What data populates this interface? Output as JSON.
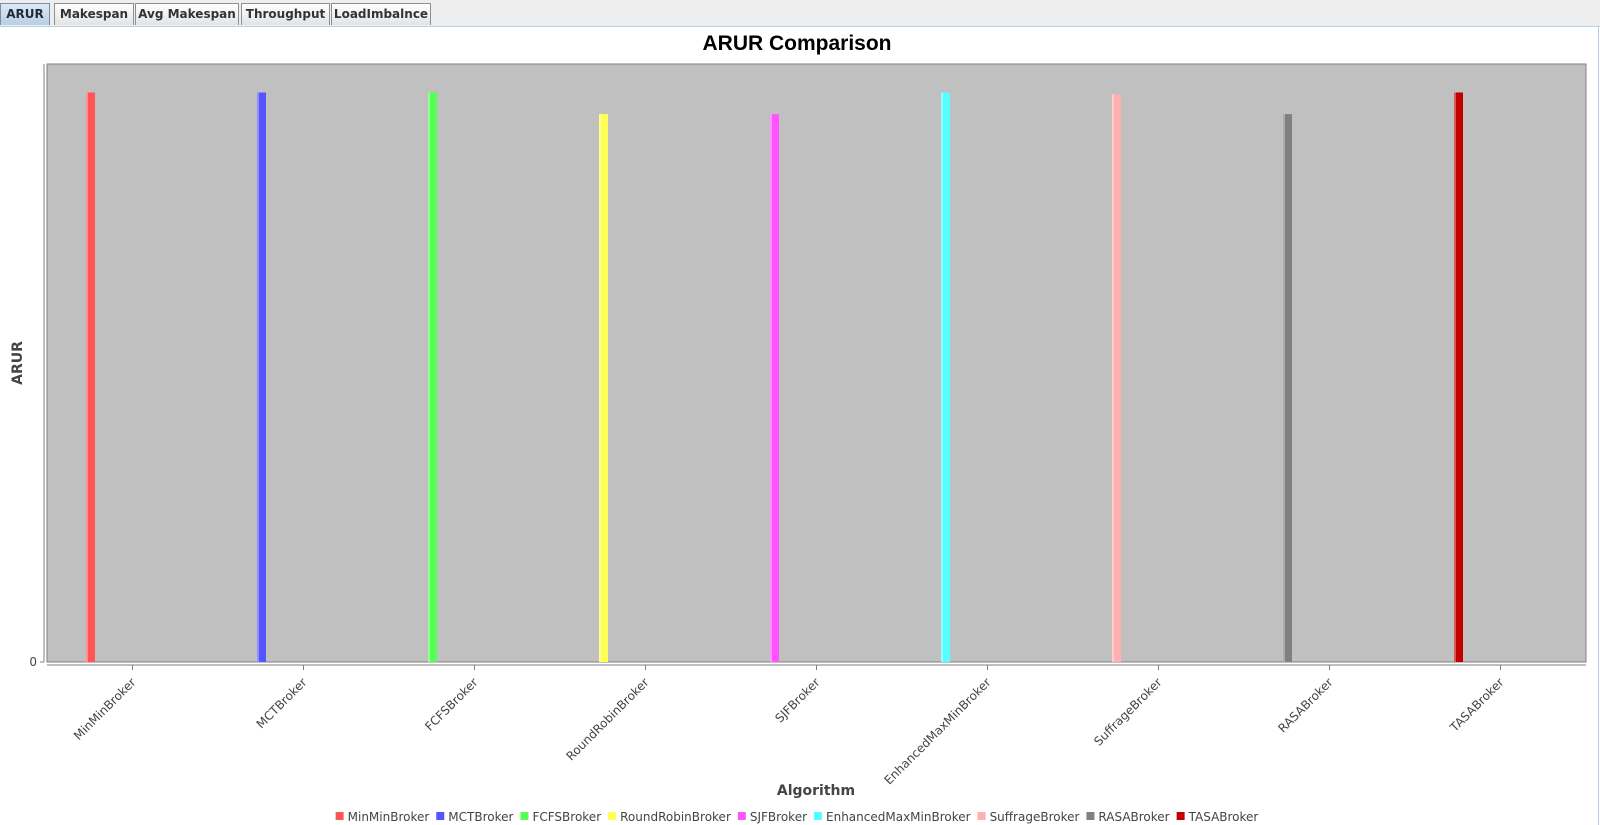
{
  "tabs": [
    {
      "label": "ARUR",
      "selected": true
    },
    {
      "label": "Makespan",
      "selected": false
    },
    {
      "label": "Avg Makespan",
      "selected": false
    },
    {
      "label": "Throughput",
      "selected": false
    },
    {
      "label": "LoadImbalnce",
      "selected": false
    }
  ],
  "chart_data": {
    "type": "bar",
    "title": "ARUR Comparison",
    "xlabel": "Algorithm",
    "ylabel": "ARUR",
    "ytick_labels": [
      "0"
    ],
    "ylim": [
      0,
      1.05
    ],
    "categories": [
      "MinMinBroker",
      "MCTBroker",
      "FCFSBroker",
      "RoundRobinBroker",
      "SJFBroker",
      "EnhancedMaxMinBroker",
      "SuffrageBroker",
      "RASABroker",
      "TASABroker"
    ],
    "values": [
      1.0,
      1.0,
      1.0,
      0.962,
      0.962,
      1.0,
      0.997,
      0.962,
      1.0
    ],
    "colors": [
      "#ff5555",
      "#5555ff",
      "#55ff55",
      "#ffff55",
      "#ff55ff",
      "#55ffff",
      "#ffafaf",
      "#808080",
      "#c00000"
    ],
    "legend": [
      "MinMinBroker",
      "MCTBroker",
      "FCFSBroker",
      "RoundRobinBroker",
      "SJFBroker",
      "EnhancedMaxMinBroker",
      "SuffrageBroker",
      "RASABroker",
      "TASABroker"
    ],
    "legend_position": "bottom",
    "plot_background": "#c0c0c0",
    "grid": false
  }
}
